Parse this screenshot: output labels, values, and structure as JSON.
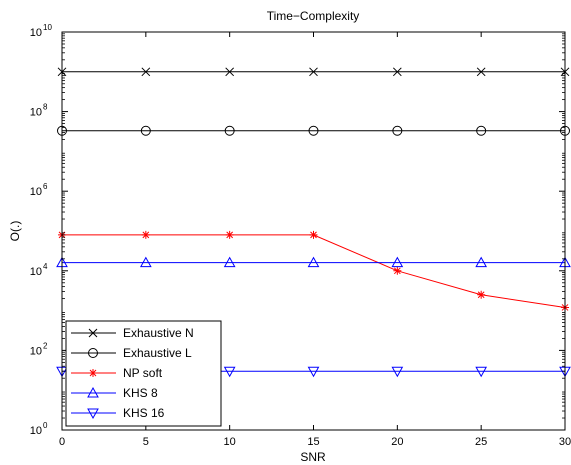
{
  "chart_data": {
    "type": "line",
    "title": "Time−Complexity",
    "xlabel": "SNR",
    "ylabel": "O(.)",
    "xlim": [
      0,
      30
    ],
    "ylim": [
      1,
      10000000000
    ],
    "yscale": "log",
    "x_ticks": [
      0,
      5,
      10,
      15,
      20,
      25,
      30
    ],
    "y_ticks": [
      {
        "base": "10",
        "exp": "0",
        "value": 1
      },
      {
        "base": "10",
        "exp": "2",
        "value": 100
      },
      {
        "base": "10",
        "exp": "4",
        "value": 10000
      },
      {
        "base": "10",
        "exp": "6",
        "value": 1000000
      },
      {
        "base": "10",
        "exp": "8",
        "value": 100000000
      },
      {
        "base": "10",
        "exp": "10",
        "value": 10000000000
      }
    ],
    "grid": false,
    "legend_position": "bottom-left",
    "x": [
      0,
      5,
      10,
      15,
      20,
      25,
      30
    ],
    "series": [
      {
        "name": "Exhaustive N",
        "color": "#000000",
        "marker": "x",
        "values": [
          1000000000,
          1000000000,
          1000000000,
          1000000000,
          1000000000,
          1000000000,
          1000000000
        ]
      },
      {
        "name": "Exhaustive L",
        "color": "#000000",
        "marker": "circle",
        "values": [
          33000000,
          33000000,
          33000000,
          33000000,
          33000000,
          33000000,
          33000000
        ]
      },
      {
        "name": "NP soft",
        "color": "#ff0000",
        "marker": "star",
        "values": [
          80000,
          80000,
          80000,
          80000,
          10000,
          2500,
          1200
        ]
      },
      {
        "name": "KHS 8",
        "color": "#0000ff",
        "marker": "triangle-up",
        "values": [
          16000,
          16000,
          16000,
          16000,
          16000,
          16000,
          16000
        ]
      },
      {
        "name": "KHS 16",
        "color": "#0000ff",
        "marker": "triangle-down",
        "values": [
          30,
          30,
          30,
          30,
          30,
          30,
          30
        ]
      }
    ]
  }
}
